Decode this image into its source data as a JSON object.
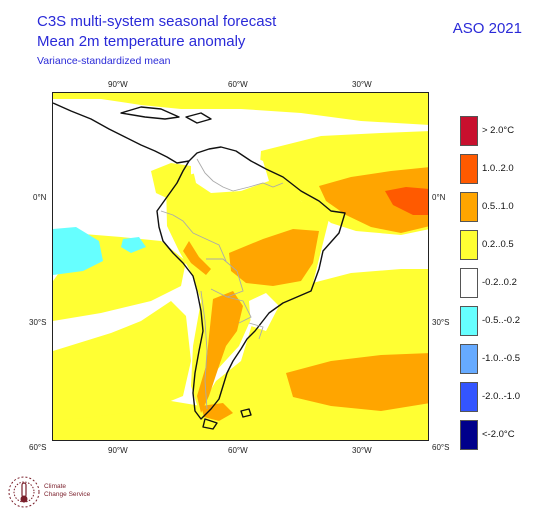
{
  "header": {
    "title_line1": "C3S multi-system seasonal forecast",
    "title_line2": "Mean 2m temperature anomaly",
    "subtitle": "Variance-standardized mean",
    "season": "ASO 2021"
  },
  "axes": {
    "lon_top": [
      "90°W",
      "60°W",
      "30°W"
    ],
    "lon_bottom": [
      "90°W",
      "60°W",
      "30°W"
    ],
    "lat_left": [
      "0°N",
      "30°S",
      "60°S"
    ],
    "lat_right": [
      "0°N",
      "30°S",
      "60°S"
    ]
  },
  "legend": {
    "items": [
      {
        "label": "> 2.0°C",
        "color": "#c8102e"
      },
      {
        "label": "1.0..2.0",
        "color": "#ff5a00"
      },
      {
        "label": "0.5..1.0",
        "color": "#ffa500"
      },
      {
        "label": "0.2..0.5",
        "color": "#ffff33"
      },
      {
        "label": "-0.2..0.2",
        "color": "#ffffff"
      },
      {
        "label": "-0.5..-0.2",
        "color": "#66ffff"
      },
      {
        "label": "-1.0..-0.5",
        "color": "#66aaff"
      },
      {
        "label": "-2.0..-1.0",
        "color": "#3355ff"
      },
      {
        "label": "<-2.0°C",
        "color": "#00008b"
      }
    ]
  },
  "logo": {
    "name_line1": "Climate",
    "name_line2": "Change Service"
  }
}
